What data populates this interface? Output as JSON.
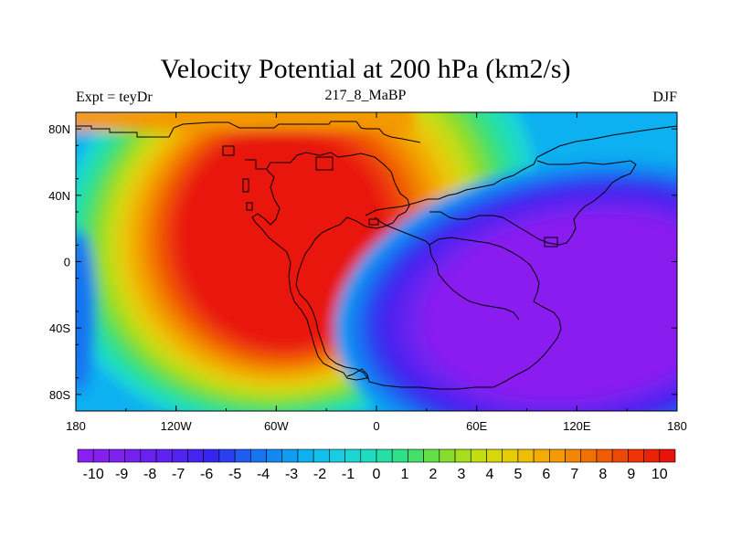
{
  "chart_data": {
    "type": "heatmap",
    "title": "Velocity Potential at 200 hPa (km2/s)",
    "subtitle_left": "Expt = teyDr",
    "subtitle_center": "217_8_MaBP",
    "subtitle_right": "DJF",
    "x_range": [
      -180,
      180
    ],
    "y_range": [
      -90,
      90
    ],
    "x_ticks": [
      {
        "value": -180,
        "label": "180"
      },
      {
        "value": -120,
        "label": "120W"
      },
      {
        "value": -60,
        "label": "60W"
      },
      {
        "value": 0,
        "label": "0"
      },
      {
        "value": 60,
        "label": "60E"
      },
      {
        "value": 120,
        "label": "120E"
      },
      {
        "value": 180,
        "label": "180"
      }
    ],
    "y_ticks": [
      {
        "value": 80,
        "label": "80N"
      },
      {
        "value": 40,
        "label": "40N"
      },
      {
        "value": 0,
        "label": "0"
      },
      {
        "value": -40,
        "label": "40S"
      },
      {
        "value": -80,
        "label": "80S"
      }
    ],
    "centers": [
      {
        "lon": -62,
        "lat": 22,
        "value": 10.8,
        "description": "velocity potential maximum (upper-level convergence)"
      },
      {
        "lon": 115,
        "lat": -22,
        "value": -10.8,
        "description": "velocity potential minimum (upper-level divergence)"
      }
    ],
    "colorbar": {
      "levels": [
        -10,
        -9.5,
        -9,
        -8.5,
        -8,
        -7.5,
        -7,
        -6.5,
        -6,
        -5.5,
        -5,
        -4.5,
        -4,
        -3.5,
        -3,
        -2.5,
        -2,
        -1.5,
        -1,
        -0.5,
        0,
        0.5,
        1,
        1.5,
        2,
        2.5,
        3,
        3.5,
        4,
        4.5,
        5,
        5.5,
        6,
        6.5,
        7,
        7.5,
        8,
        8.5,
        9,
        9.5,
        10
      ],
      "labels": [
        "-10",
        "-9",
        "-8",
        "-7",
        "-6",
        "-5",
        "-4",
        "-3",
        "-2",
        "-1",
        "0",
        "1",
        "2",
        "3",
        "4",
        "5",
        "6",
        "7",
        "8",
        "9",
        "10"
      ],
      "colors": [
        "#8a1ff0",
        "#841ff0",
        "#7d20f0",
        "#7320f0",
        "#6a21f0",
        "#5f22f0",
        "#5223ef",
        "#4524ef",
        "#3526ef",
        "#2a3ff0",
        "#1f5df2",
        "#1774f2",
        "#1288f2",
        "#0f9cf2",
        "#0eb0f0",
        "#12c0ec",
        "#18cce4",
        "#1dd6d4",
        "#1fdcc0",
        "#24dfa6",
        "#2fe08a",
        "#45e06a",
        "#63df48",
        "#87dd2c",
        "#a6dd1c",
        "#c2dd12",
        "#d6d80c",
        "#e6cb08",
        "#eebd05",
        "#f2ac04",
        "#f39a04",
        "#f38604",
        "#f27104",
        "#f05c05",
        "#ee4806",
        "#ec3407",
        "#ea2208",
        "#e8130a"
      ]
    }
  }
}
